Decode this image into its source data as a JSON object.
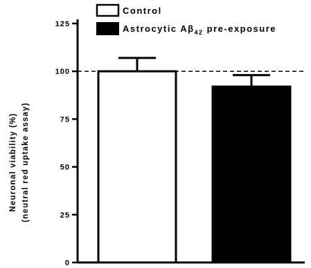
{
  "chart_data": {
    "type": "bar",
    "categories": [
      "Control",
      "Astrocytic Aβ42 pre-exposure"
    ],
    "values": [
      100,
      92
    ],
    "errors": [
      7,
      6
    ],
    "bar_fills": [
      "#ffffff",
      "#000000"
    ],
    "ylabel_line1": "Neuronal viability (%)",
    "ylabel_line2": "(neutral red uptake assay)",
    "ylim": [
      0,
      125
    ],
    "yticks": [
      "0",
      "25",
      "50",
      "75",
      "100",
      "125"
    ],
    "reference_line": 100,
    "legend": {
      "placement": "top",
      "entries": [
        {
          "label": "Control",
          "fill": "#ffffff"
        },
        {
          "label_main": "Astrocytic Aβ",
          "label_sub": "42",
          "label_tail": " pre-exposure",
          "fill": "#000000"
        }
      ]
    }
  }
}
